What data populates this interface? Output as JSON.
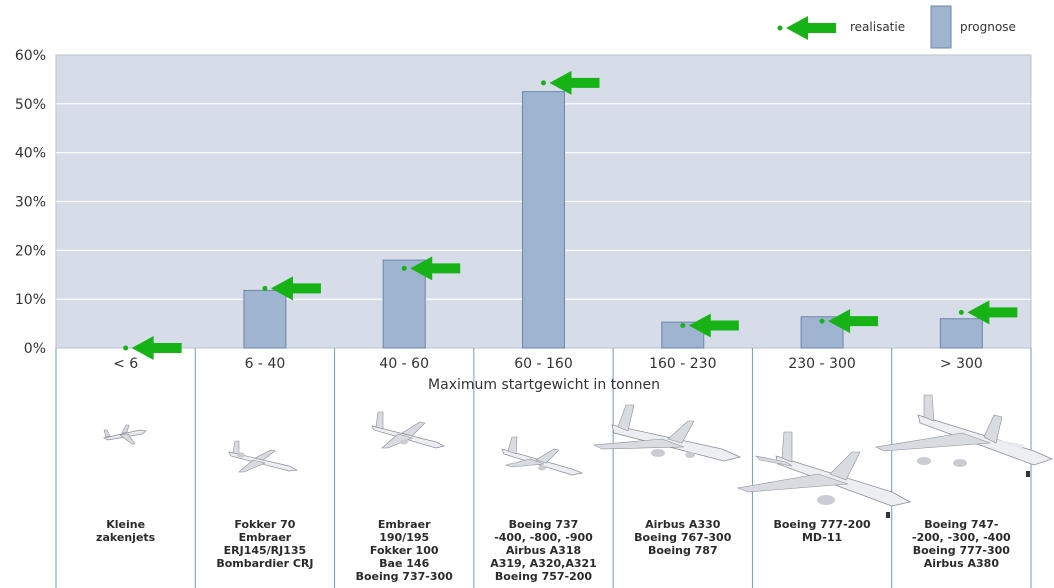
{
  "legend": {
    "realisatie_label": "realisatie",
    "prognose_label": "prognose"
  },
  "colors": {
    "plot_bg": "#d6dde8",
    "bar_fill": "#9fb4d0",
    "bar_stroke": "#6e86a8",
    "arrow": "#16b216",
    "divider": "#6a9fc0"
  },
  "chart_data": {
    "type": "bar",
    "xlabel": "Maximum startgewicht in tonnen",
    "ylabel": "",
    "ylim": [
      0,
      60
    ],
    "yticks": [
      "0%",
      "10%",
      "20%",
      "30%",
      "40%",
      "50%",
      "60%"
    ],
    "categories": [
      "< 6",
      "6 - 40",
      "40 - 60",
      "60 - 160",
      "160 - 230",
      "230 - 300",
      "> 300"
    ],
    "series": [
      {
        "name": "prognose",
        "values": [
          0,
          11.8,
          18,
          52.5,
          5.3,
          6.4,
          6
        ]
      },
      {
        "name": "realisatie",
        "values": [
          0,
          12.2,
          16.3,
          54.3,
          4.6,
          5.5,
          7.3
        ]
      }
    ],
    "grid": true,
    "legend_position": "top-right"
  },
  "aircraft": [
    {
      "label": "Kleine\nzakenjets",
      "icon": "business-jet-icon"
    },
    {
      "label": "Fokker 70\nEmbraer\nERJ145/RJ135\nBombardier CRJ",
      "icon": "regional-jet-icon"
    },
    {
      "label": "Embraer\n190/195\nFokker 100\nBae 146\nBoeing 737-300",
      "icon": "narrowbody-jet-icon"
    },
    {
      "label": "Boeing 737\n-400, -800, -900\nAirbus A318\nA319, A320,A321\nBoeing 757-200",
      "icon": "single-aisle-jet-icon"
    },
    {
      "label": "Airbus A330\nBoeing 767-300\nBoeing 787",
      "icon": "widebody-jet-icon"
    },
    {
      "label": "Boeing 777-200\nMD-11",
      "icon": "large-widebody-jet-icon"
    },
    {
      "label": "Boeing 747-\n-200, -300, -400\nBoeing 777-300\nAirbus A380",
      "icon": "jumbo-jet-icon"
    }
  ]
}
